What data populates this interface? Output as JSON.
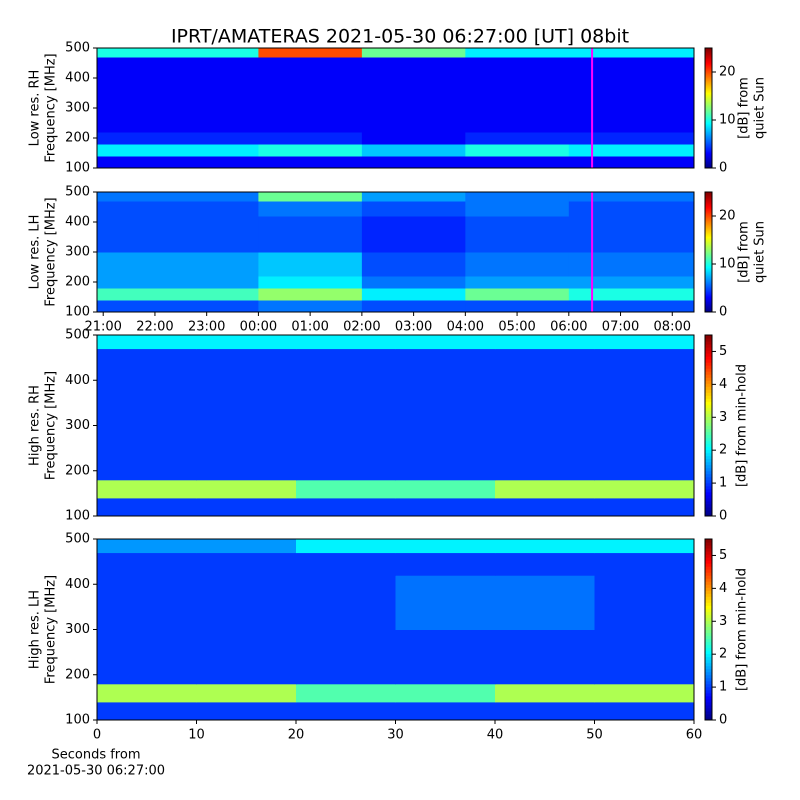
{
  "title": "IPRT/AMATERAS 2021-05-30 06:27:00 [UT]   08bit",
  "chart_data": [
    {
      "type": "heatmap",
      "ylabel": [
        "Low res. RH",
        "Frequency [MHz]"
      ],
      "xlim": [
        20.88,
        32.42
      ],
      "ylim": [
        100,
        500
      ],
      "yticks": [
        100,
        200,
        300,
        400,
        500
      ],
      "x_edges": [
        20.88,
        24,
        26,
        28,
        30,
        32.42
      ],
      "y_edges": [
        100,
        140,
        180,
        220,
        300,
        420,
        470,
        500
      ],
      "z": [
        [
          3,
          3,
          3,
          3,
          3
        ],
        [
          9,
          10,
          8,
          10,
          9
        ],
        [
          4,
          4,
          3,
          4,
          4
        ],
        [
          3,
          3,
          3,
          3,
          3
        ],
        [
          3,
          3,
          3,
          3,
          3
        ],
        [
          3,
          3,
          3,
          3,
          3
        ],
        [
          10,
          20,
          12,
          9,
          9
        ]
      ],
      "clim": [
        0,
        25
      ],
      "cticks": [
        0,
        10,
        20
      ],
      "colorbar_label": [
        "[dB] from",
        "quiet Sun"
      ],
      "marker_x": 30.45,
      "marker_color": "#ff00ff"
    },
    {
      "type": "heatmap",
      "ylabel": [
        "Low res. LH",
        "Frequency [MHz]"
      ],
      "xlim": [
        20.88,
        32.42
      ],
      "ylim": [
        100,
        500
      ],
      "yticks": [
        100,
        200,
        300,
        400,
        500
      ],
      "xticks": [
        {
          "value": 21,
          "label": "21:00"
        },
        {
          "value": 22,
          "label": "22:00"
        },
        {
          "value": 23,
          "label": "23:00"
        },
        {
          "value": 24,
          "label": "00:00"
        },
        {
          "value": 25,
          "label": "01:00"
        },
        {
          "value": 26,
          "label": "02:00"
        },
        {
          "value": 27,
          "label": "03:00"
        },
        {
          "value": 28,
          "label": "04:00"
        },
        {
          "value": 29,
          "label": "05:00"
        },
        {
          "value": 30,
          "label": "06:00"
        },
        {
          "value": 31,
          "label": "07:00"
        },
        {
          "value": 32,
          "label": "08:00"
        }
      ],
      "x_edges": [
        20.88,
        24,
        26,
        28,
        30,
        32.42
      ],
      "y_edges": [
        100,
        140,
        180,
        220,
        300,
        420,
        470,
        500
      ],
      "z": [
        [
          5,
          6,
          5,
          5,
          5
        ],
        [
          11,
          13,
          9,
          12,
          10
        ],
        [
          7,
          9,
          6,
          7,
          7
        ],
        [
          7,
          8,
          5,
          6,
          6
        ],
        [
          5,
          5,
          4,
          5,
          5
        ],
        [
          5,
          6,
          5,
          6,
          5
        ],
        [
          6,
          12,
          7,
          6,
          6
        ]
      ],
      "clim": [
        0,
        25
      ],
      "cticks": [
        0,
        10,
        20
      ],
      "colorbar_label": [
        "[dB] from",
        "quiet Sun"
      ],
      "marker_x": 30.45,
      "marker_color": "#ff00ff"
    },
    {
      "type": "heatmap",
      "ylabel": [
        "High res. RH",
        "Frequency [MHz]"
      ],
      "xlim": [
        0,
        60
      ],
      "ylim": [
        100,
        500
      ],
      "yticks": [
        100,
        200,
        300,
        400,
        500
      ],
      "x_edges": [
        0,
        10,
        20,
        30,
        40,
        50,
        60
      ],
      "y_edges": [
        100,
        140,
        180,
        220,
        300,
        420,
        470,
        500
      ],
      "z": [
        [
          1,
          1,
          1,
          1,
          1,
          1
        ],
        [
          3,
          3,
          2.5,
          2.5,
          3,
          3
        ],
        [
          1,
          1,
          1,
          1,
          1,
          1
        ],
        [
          1,
          1,
          1,
          1,
          1,
          1
        ],
        [
          1,
          1,
          1,
          1,
          1,
          1
        ],
        [
          1,
          1,
          1,
          1,
          1,
          1
        ],
        [
          2,
          2,
          2,
          2,
          2,
          2
        ]
      ],
      "clim": [
        0,
        5.5
      ],
      "cticks": [
        0,
        1,
        2,
        3,
        4,
        5
      ],
      "colorbar_label": [
        "[dB] from min-hold"
      ]
    },
    {
      "type": "heatmap",
      "ylabel": [
        "High res. LH",
        "Frequency [MHz]"
      ],
      "xlim": [
        0,
        60
      ],
      "ylim": [
        100,
        500
      ],
      "yticks": [
        100,
        200,
        300,
        400,
        500
      ],
      "xticks": [
        0,
        10,
        20,
        30,
        40,
        50,
        60
      ],
      "xlabel": [
        "Seconds from",
        "2021-05-30 06:27:00"
      ],
      "x_edges": [
        0,
        10,
        20,
        30,
        40,
        50,
        60
      ],
      "y_edges": [
        100,
        140,
        180,
        220,
        300,
        420,
        470,
        500
      ],
      "z": [
        [
          1,
          1,
          1,
          1,
          1,
          1
        ],
        [
          3,
          3,
          2.5,
          2.5,
          3,
          3
        ],
        [
          1,
          1,
          1,
          1,
          1,
          1
        ],
        [
          1,
          1,
          1,
          1,
          1,
          1
        ],
        [
          1,
          1,
          1,
          1.3,
          1.3,
          1
        ],
        [
          1,
          1,
          1,
          1,
          1,
          1
        ],
        [
          1.5,
          1.5,
          2,
          2,
          2,
          2
        ]
      ],
      "clim": [
        0,
        5.5
      ],
      "cticks": [
        0,
        1,
        2,
        3,
        4,
        5
      ],
      "colorbar_label": [
        "[dB] from min-hold"
      ]
    }
  ]
}
